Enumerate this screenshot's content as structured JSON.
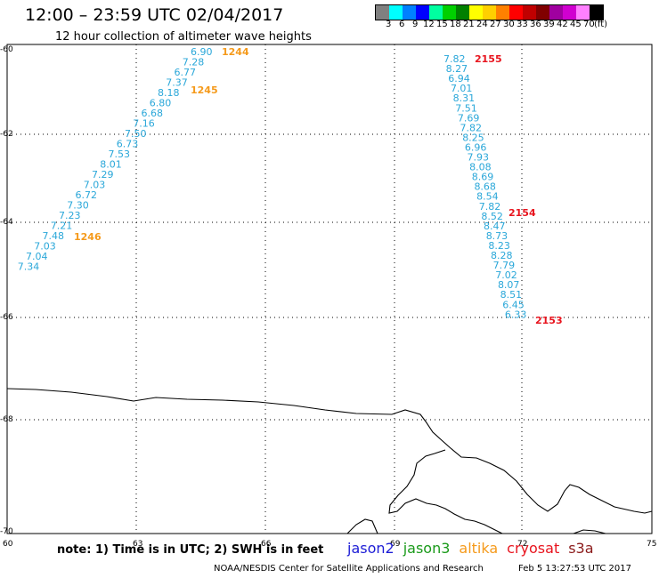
{
  "header": {
    "title": "12:00 – 23:59 UTC 02/04/2017",
    "subtitle": "12 hour collection of altimeter wave heights"
  },
  "legend": {
    "colors": [
      "#808080",
      "#00ffff",
      "#0080ff",
      "#0000ff",
      "#00ffa0",
      "#00d000",
      "#008000",
      "#ffff00",
      "#ffd000",
      "#ff8000",
      "#ff0000",
      "#c00000",
      "#800000",
      "#a000a0",
      "#d000d0",
      "#ff80ff",
      "#000000"
    ],
    "labels": [
      "3",
      "6",
      "9",
      "12",
      "15",
      "18",
      "21",
      "24",
      "27",
      "30",
      "33",
      "36",
      "39",
      "42",
      "45",
      "70",
      "(ft)"
    ]
  },
  "axes": {
    "lat_labels": [
      "-60",
      "-62",
      "-64",
      "-66",
      "-68",
      "-70"
    ],
    "lon_labels": [
      "60",
      "63",
      "66",
      "69",
      "72",
      "75"
    ]
  },
  "tracks": {
    "west": {
      "values": [
        "6.90",
        "7.28",
        "6.77",
        "7.37",
        "8.18",
        "6.80",
        "6.68",
        "7.16",
        "7.50",
        "6.73",
        "7.53",
        "8.01",
        "7.29",
        "7.03",
        "6.72",
        "7.30",
        "7.23",
        "7.21",
        "7.48",
        "7.03",
        "7.04",
        "7.34"
      ],
      "times": [
        "1244",
        "1245",
        "1246"
      ],
      "color": "#2aa7d9",
      "time_color": "#f59a1b"
    },
    "east": {
      "values": [
        "7.82",
        "8.27",
        "6.94",
        "7.01",
        "8.31",
        "7.51",
        "7.69",
        "7.82",
        "8.25",
        "6.96",
        "7.93",
        "8.08",
        "8.69",
        "8.68",
        "8.54",
        "7.82",
        "8.52",
        "8.47",
        "8.73",
        "8.23",
        "8.28",
        "7.79",
        "7.02",
        "8.07",
        "8.51",
        "6.45",
        "6.33"
      ],
      "times": [
        "2155",
        "2154",
        "2153"
      ],
      "color": "#2aa7d9",
      "time_color": "#e8141e"
    }
  },
  "footer": {
    "note": "note:  1) Time is in UTC;  2) SWH is in feet",
    "satellites": [
      {
        "name": "jason2",
        "color": "#1d1dd6"
      },
      {
        "name": "jason3",
        "color": "#1a9a1a"
      },
      {
        "name": "altika",
        "color": "#f59a1b"
      },
      {
        "name": "cryosat",
        "color": "#e8141e"
      },
      {
        "name": "s3a",
        "color": "#8b1a1a"
      }
    ],
    "credit": "NOAA/NESDIS Center for Satellite Applications and Research",
    "timestamp": "Feb  5 13:27:53 UTC 2017"
  }
}
